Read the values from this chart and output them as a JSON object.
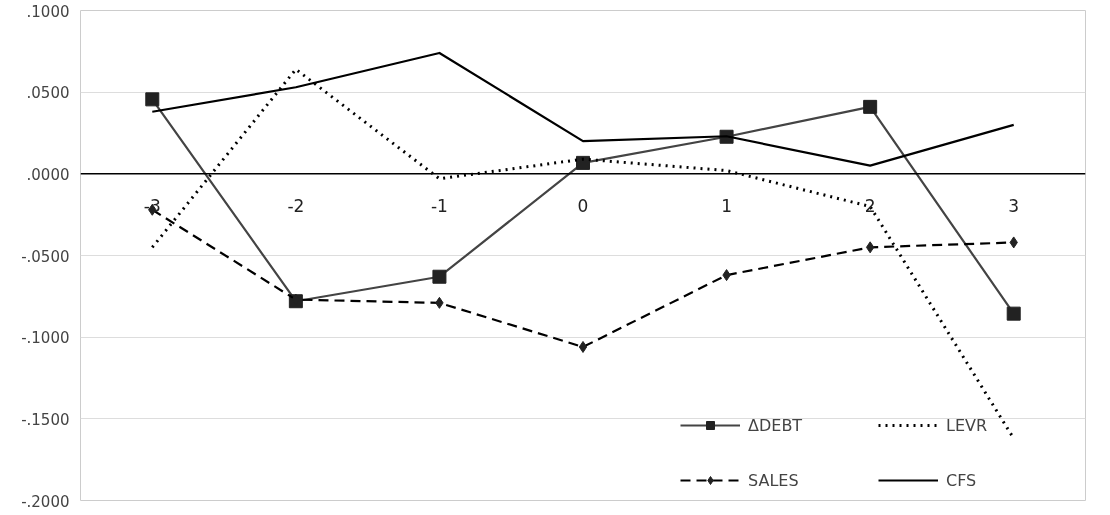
{
  "chart_data": {
    "type": "line",
    "categories": [
      "-3",
      "-2",
      "-1",
      "0",
      "1",
      "2",
      "3"
    ],
    "series": [
      {
        "name": "ΔDEBT",
        "color": "#444444",
        "marker": "square",
        "line_style": "solid",
        "values": [
          0.0456,
          -0.078,
          -0.063,
          0.0067,
          0.0227,
          0.041,
          -0.0856
        ]
      },
      {
        "name": "LEVR",
        "color": "#000000",
        "marker": "none",
        "line_style": "dotted",
        "values": [
          -0.045,
          0.064,
          -0.003,
          0.009,
          0.002,
          -0.02,
          -0.162
        ]
      },
      {
        "name": "SALES",
        "color": "#000000",
        "marker": "diamond",
        "line_style": "dashed",
        "values": [
          -0.022,
          -0.077,
          -0.079,
          -0.106,
          -0.062,
          -0.045,
          -0.042
        ]
      },
      {
        "name": "CFS",
        "color": "#000000",
        "marker": "none",
        "line_style": "solid",
        "values": [
          0.038,
          0.053,
          0.074,
          0.02,
          0.023,
          0.005,
          0.03
        ]
      }
    ],
    "ylim": [
      -0.2,
      0.1
    ],
    "yticks": [
      {
        "value": -0.2,
        "label": "-.2000"
      },
      {
        "value": -0.15,
        "label": "-.1500"
      },
      {
        "value": -0.1,
        "label": "-.1000"
      },
      {
        "value": -0.05,
        "label": "-.0500"
      },
      {
        "value": 0,
        "label": ".0000"
      },
      {
        "value": 0.05,
        "label": ".0500"
      },
      {
        "value": 0.1,
        "label": ".1000"
      }
    ],
    "grid": "y",
    "legend": "bottom right"
  }
}
